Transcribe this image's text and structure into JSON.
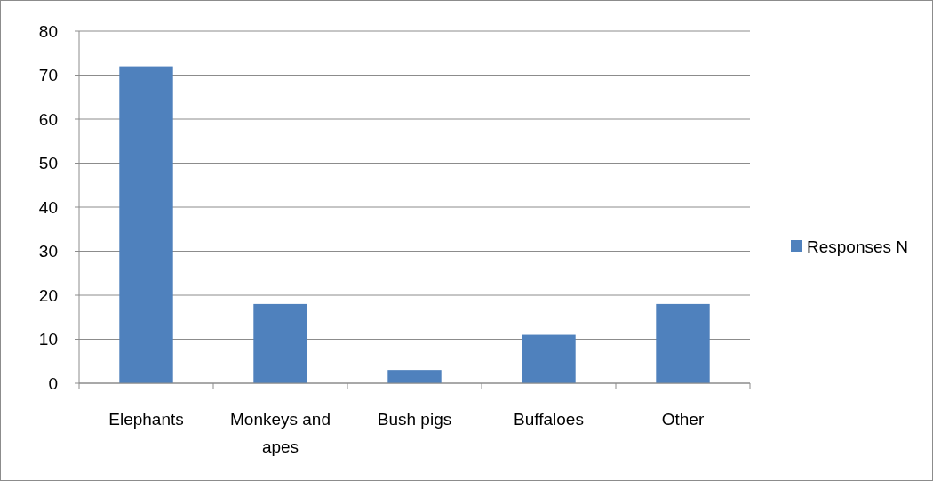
{
  "chart_data": {
    "type": "bar",
    "categories": [
      "Elephants",
      "Monkeys and apes",
      "Bush pigs",
      "Buffaloes",
      "Other"
    ],
    "series": [
      {
        "name": "Responses N",
        "color": "#4f81bd",
        "values": [
          72,
          18,
          3,
          11,
          18
        ]
      }
    ],
    "ylim": [
      0,
      80
    ],
    "yticks": [
      0,
      10,
      20,
      30,
      40,
      50,
      60,
      70,
      80
    ],
    "grid": "y",
    "legend": "right"
  }
}
